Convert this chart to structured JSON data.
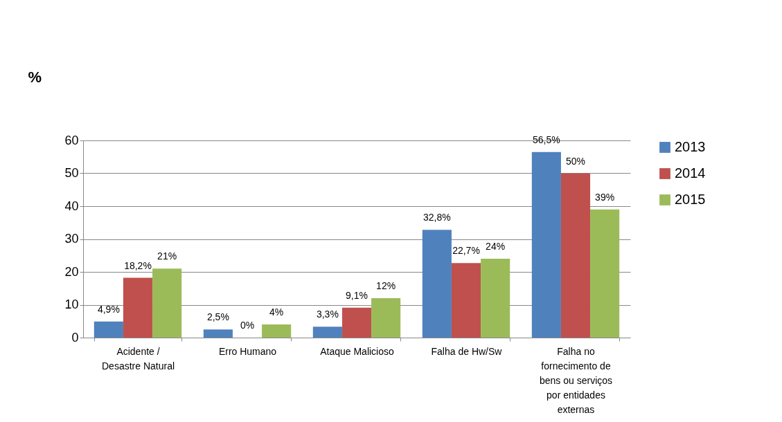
{
  "chart_data": {
    "type": "bar",
    "ylabel": "%",
    "categories": [
      "Acidente / Desastre Natural",
      "Erro Humano",
      "Ataque Malicioso",
      "Falha de Hw/Sw",
      "Falha no fornecimento de bens ou serviços por entidades externas"
    ],
    "series": [
      {
        "name": "2013",
        "color": "#4f81bd",
        "values": [
          4.9,
          2.5,
          3.3,
          32.8,
          56.5
        ],
        "value_labels": [
          "4,9%",
          "2,5%",
          "3,3%",
          "32,8%",
          "56,5%"
        ]
      },
      {
        "name": "2014",
        "color": "#c0504d",
        "values": [
          18.2,
          0,
          9.1,
          22.7,
          50
        ],
        "value_labels": [
          "18,2%",
          "0%",
          "9,1%",
          "22,7%",
          "50%"
        ]
      },
      {
        "name": "2015",
        "color": "#9bbb59",
        "values": [
          21,
          4,
          12,
          24,
          39
        ],
        "value_labels": [
          "21%",
          "4%",
          "12%",
          "24%",
          "39%"
        ]
      }
    ],
    "ylim": [
      0,
      60
    ],
    "yticks": [
      0,
      10,
      20,
      30,
      40,
      50,
      60
    ],
    "grid": "y",
    "legend": "right"
  }
}
